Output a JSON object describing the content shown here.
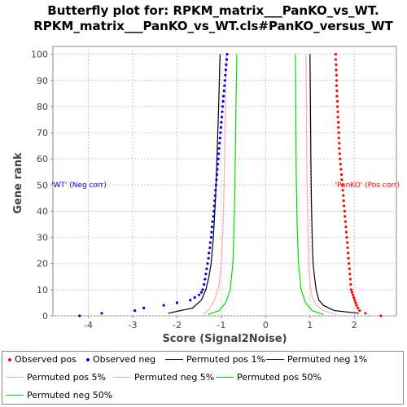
{
  "chart_data": {
    "type": "scatter",
    "title_line1": "Butterfly plot for: RPKM_matrix___PanKO_vs_WT.",
    "title_line2": "RPKM_matrix___PanKO_vs_WT.cls#PanKO_versus_WT",
    "xlabel": "Score (Signal2Noise)",
    "ylabel": "Gene rank",
    "xlim": [
      -4.8,
      2.95
    ],
    "ylim": [
      0,
      103
    ],
    "x_ticks": [
      -4,
      -3,
      -2,
      -1,
      0,
      1,
      2
    ],
    "y_ticks": [
      0,
      10,
      20,
      30,
      40,
      50,
      60,
      70,
      80,
      90,
      100
    ],
    "grid": true,
    "annotations": {
      "neg_label": "'WT' (Neg corr)",
      "pos_label": "'PanKO' (Pos corr)"
    },
    "series": [
      {
        "name": "Observed pos",
        "kind": "points",
        "color": "#ff0000",
        "points": [
          [
            2.6,
            0
          ],
          [
            2.25,
            1
          ],
          [
            2.12,
            2
          ],
          [
            2.08,
            3
          ],
          [
            2.05,
            4
          ],
          [
            2.03,
            5
          ],
          [
            2.01,
            6
          ],
          [
            1.99,
            7
          ],
          [
            1.97,
            8
          ],
          [
            1.95,
            9
          ],
          [
            1.93,
            10
          ],
          [
            1.92,
            12
          ],
          [
            1.91,
            14
          ],
          [
            1.9,
            16
          ],
          [
            1.89,
            18
          ],
          [
            1.88,
            20
          ],
          [
            1.87,
            22
          ],
          [
            1.86,
            24
          ],
          [
            1.85,
            26
          ],
          [
            1.84,
            28
          ],
          [
            1.83,
            30
          ],
          [
            1.82,
            32
          ],
          [
            1.81,
            34
          ],
          [
            1.8,
            36
          ],
          [
            1.79,
            38
          ],
          [
            1.78,
            40
          ],
          [
            1.77,
            42
          ],
          [
            1.76,
            44
          ],
          [
            1.75,
            46
          ],
          [
            1.74,
            48
          ],
          [
            1.73,
            50
          ],
          [
            1.72,
            52
          ],
          [
            1.71,
            54
          ],
          [
            1.7,
            56
          ],
          [
            1.69,
            58
          ],
          [
            1.68,
            60
          ],
          [
            1.67,
            62
          ],
          [
            1.66,
            64
          ],
          [
            1.66,
            66
          ],
          [
            1.65,
            68
          ],
          [
            1.65,
            70
          ],
          [
            1.64,
            72
          ],
          [
            1.64,
            74
          ],
          [
            1.63,
            76
          ],
          [
            1.63,
            78
          ],
          [
            1.62,
            80
          ],
          [
            1.62,
            82
          ],
          [
            1.61,
            84
          ],
          [
            1.61,
            86
          ],
          [
            1.6,
            88
          ],
          [
            1.6,
            90
          ],
          [
            1.6,
            92
          ],
          [
            1.59,
            94
          ],
          [
            1.59,
            96
          ],
          [
            1.58,
            98
          ],
          [
            1.58,
            100
          ]
        ]
      },
      {
        "name": "Observed neg",
        "kind": "points",
        "color": "#0000ee",
        "points": [
          [
            -4.2,
            0
          ],
          [
            -3.7,
            1
          ],
          [
            -2.95,
            2
          ],
          [
            -2.75,
            3
          ],
          [
            -2.3,
            4
          ],
          [
            -2.0,
            5
          ],
          [
            -1.7,
            6
          ],
          [
            -1.6,
            7
          ],
          [
            -1.5,
            8
          ],
          [
            -1.45,
            9
          ],
          [
            -1.42,
            10
          ],
          [
            -1.39,
            12
          ],
          [
            -1.37,
            14
          ],
          [
            -1.35,
            16
          ],
          [
            -1.33,
            18
          ],
          [
            -1.31,
            20
          ],
          [
            -1.29,
            22
          ],
          [
            -1.28,
            24
          ],
          [
            -1.26,
            26
          ],
          [
            -1.25,
            28
          ],
          [
            -1.23,
            30
          ],
          [
            -1.22,
            32
          ],
          [
            -1.21,
            34
          ],
          [
            -1.2,
            36
          ],
          [
            -1.18,
            38
          ],
          [
            -1.17,
            40
          ],
          [
            -1.16,
            42
          ],
          [
            -1.15,
            44
          ],
          [
            -1.14,
            46
          ],
          [
            -1.13,
            48
          ],
          [
            -1.12,
            50
          ],
          [
            -1.11,
            52
          ],
          [
            -1.1,
            54
          ],
          [
            -1.09,
            56
          ],
          [
            -1.08,
            58
          ],
          [
            -1.07,
            60
          ],
          [
            -1.06,
            62
          ],
          [
            -1.05,
            64
          ],
          [
            -1.04,
            66
          ],
          [
            -1.03,
            68
          ],
          [
            -1.02,
            70
          ],
          [
            -1.01,
            72
          ],
          [
            -1.0,
            74
          ],
          [
            -0.99,
            76
          ],
          [
            -0.98,
            78
          ],
          [
            -0.97,
            80
          ],
          [
            -0.96,
            82
          ],
          [
            -0.95,
            84
          ],
          [
            -0.94,
            86
          ],
          [
            -0.93,
            88
          ],
          [
            -0.92,
            90
          ],
          [
            -0.91,
            92
          ],
          [
            -0.9,
            94
          ],
          [
            -0.89,
            96
          ],
          [
            -0.88,
            98
          ],
          [
            -0.87,
            100
          ]
        ]
      },
      {
        "name": "Permuted pos 1%",
        "kind": "line",
        "color": "#000000",
        "points": [
          [
            2.1,
            1
          ],
          [
            1.55,
            2
          ],
          [
            1.3,
            4
          ],
          [
            1.2,
            6
          ],
          [
            1.14,
            10
          ],
          [
            1.1,
            15
          ],
          [
            1.07,
            20
          ],
          [
            1.05,
            30
          ],
          [
            1.03,
            45
          ],
          [
            1.02,
            60
          ],
          [
            1.01,
            80
          ],
          [
            1.0,
            100
          ]
        ]
      },
      {
        "name": "Permuted neg 1%",
        "kind": "line",
        "color": "#000000",
        "points": [
          [
            -2.2,
            1
          ],
          [
            -1.65,
            3
          ],
          [
            -1.45,
            6
          ],
          [
            -1.35,
            10
          ],
          [
            -1.28,
            15
          ],
          [
            -1.23,
            20
          ],
          [
            -1.18,
            30
          ],
          [
            -1.13,
            45
          ],
          [
            -1.1,
            60
          ],
          [
            -1.06,
            80
          ],
          [
            -1.03,
            100
          ]
        ]
      },
      {
        "name": "Permuted pos 5%",
        "kind": "line",
        "color": "#ffaaaa",
        "points": [
          [
            1.6,
            0.5
          ],
          [
            1.3,
            2
          ],
          [
            1.15,
            4
          ],
          [
            1.05,
            7
          ],
          [
            1.0,
            12
          ],
          [
            0.97,
            20
          ],
          [
            0.95,
            35
          ],
          [
            0.93,
            55
          ],
          [
            0.92,
            80
          ],
          [
            0.91,
            100
          ]
        ]
      },
      {
        "name": "Permuted neg 5%",
        "kind": "line",
        "color": "#ffaaaa",
        "points": [
          [
            -1.4,
            0.5
          ],
          [
            -1.25,
            3
          ],
          [
            -1.13,
            7
          ],
          [
            -1.05,
            12
          ],
          [
            -1.0,
            20
          ],
          [
            -0.96,
            35
          ],
          [
            -0.93,
            55
          ],
          [
            -0.91,
            80
          ],
          [
            -0.89,
            100
          ]
        ]
      },
      {
        "name": "Permuted pos 50%",
        "kind": "line",
        "color": "#00dd00",
        "points": [
          [
            1.3,
            0.5
          ],
          [
            1.05,
            2
          ],
          [
            0.9,
            5
          ],
          [
            0.8,
            10
          ],
          [
            0.74,
            20
          ],
          [
            0.71,
            35
          ],
          [
            0.69,
            55
          ],
          [
            0.68,
            80
          ],
          [
            0.67,
            100
          ]
        ]
      },
      {
        "name": "Permuted neg 50%",
        "kind": "line",
        "color": "#00dd00",
        "points": [
          [
            -1.3,
            0.5
          ],
          [
            -1.05,
            2
          ],
          [
            -0.9,
            5
          ],
          [
            -0.8,
            10
          ],
          [
            -0.74,
            20
          ],
          [
            -0.71,
            35
          ],
          [
            -0.69,
            55
          ],
          [
            -0.67,
            80
          ],
          [
            -0.65,
            100
          ]
        ]
      }
    ]
  }
}
